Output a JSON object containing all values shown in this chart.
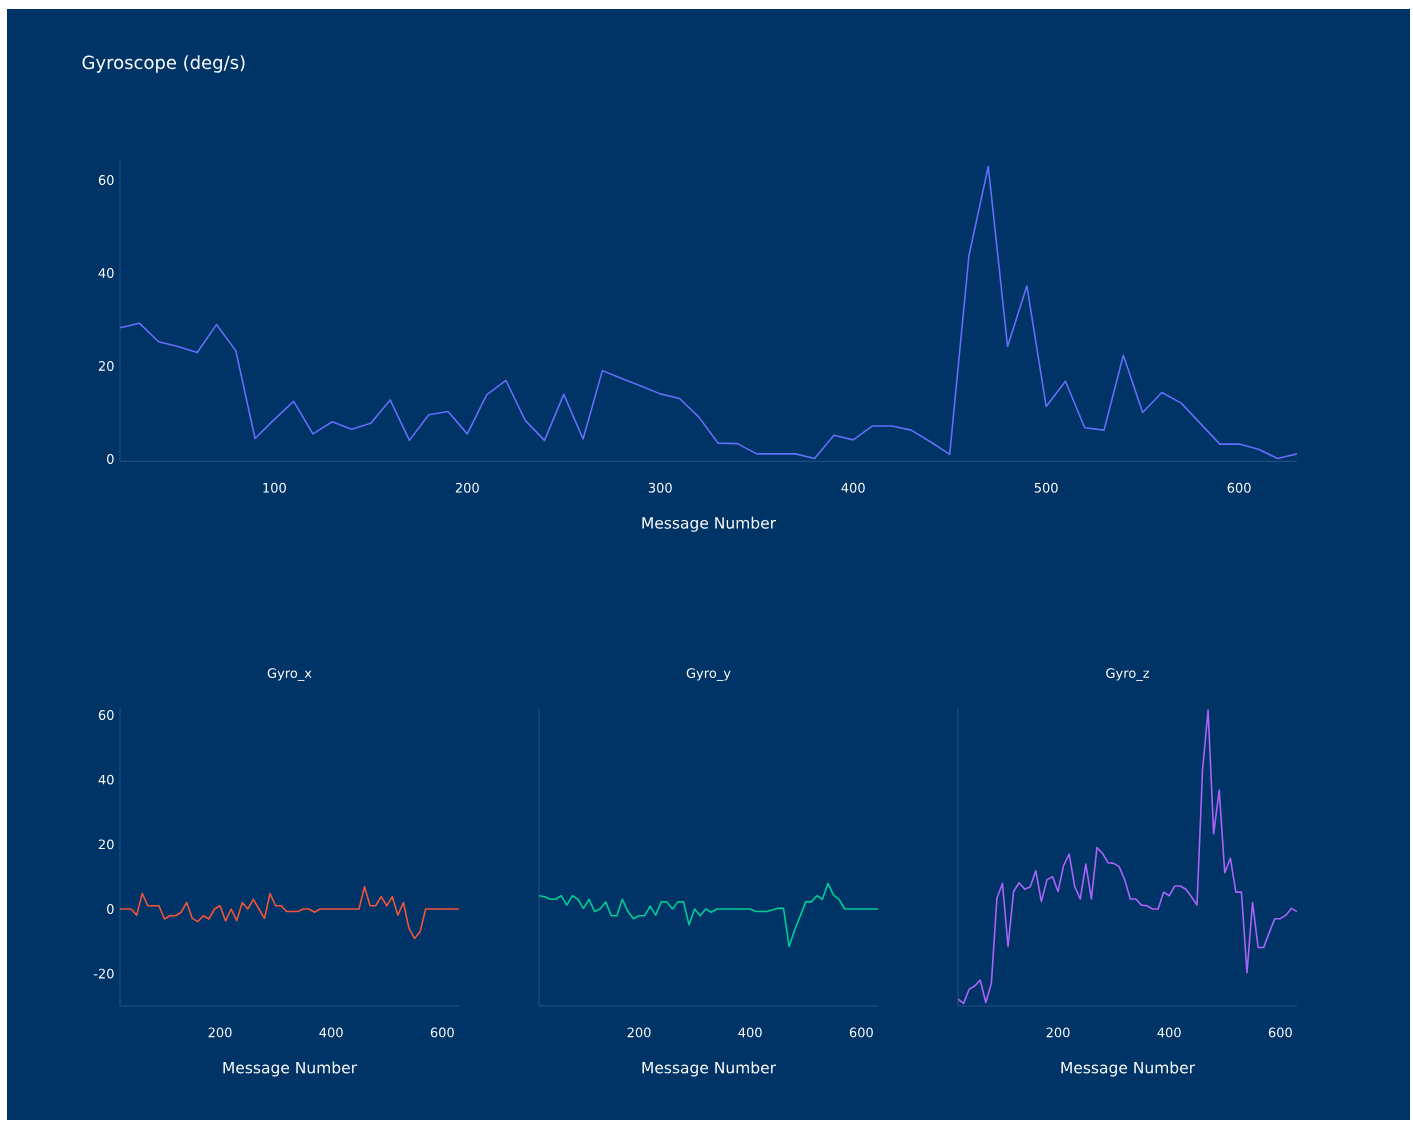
{
  "chart_data": [
    {
      "type": "line",
      "title": "Gyroscope (deg/s)",
      "xlabel": "Message Number",
      "xlim": [
        20,
        630
      ],
      "ylim": [
        -0.5,
        64
      ],
      "xticks": [
        100,
        200,
        300,
        400,
        500,
        600
      ],
      "yticks": [
        0,
        20,
        40,
        60
      ],
      "x": [
        20,
        30,
        40,
        50,
        60,
        70,
        80,
        90,
        100,
        110,
        120,
        130,
        140,
        150,
        160,
        170,
        180,
        190,
        200,
        210,
        220,
        230,
        240,
        250,
        260,
        270,
        280,
        290,
        300,
        310,
        320,
        330,
        340,
        350,
        360,
        370,
        380,
        390,
        400,
        410,
        420,
        430,
        440,
        450,
        460,
        470,
        480,
        490,
        500,
        510,
        520,
        530,
        540,
        550,
        560,
        570,
        580,
        590,
        600,
        610,
        620,
        630
      ],
      "series": [
        {
          "color": "#636efa",
          "values": [
            28.2,
            29.2,
            25.2,
            24.2,
            22.9,
            28.9,
            23.3,
            4.4,
            8.5,
            12.4,
            5.4,
            8.0,
            6.4,
            7.7,
            12.7,
            4.0,
            9.5,
            10.2,
            5.4,
            13.8,
            16.9,
            8.3,
            4.0,
            13.9,
            4.3,
            19.0,
            17.3,
            15.7,
            14.0,
            13.0,
            9.0,
            3.4,
            3.3,
            1.1,
            1.1,
            1.1,
            0.1,
            5.1,
            4.1,
            7.1,
            7.1,
            6.2,
            3.7,
            1.0,
            43.8,
            62.9,
            24.2,
            37.2,
            11.3,
            16.7,
            6.7,
            6.2,
            22.3,
            10.0,
            14.3,
            12.0,
            7.6,
            3.2,
            3.2,
            2.1,
            0.1,
            1.1
          ]
        }
      ]
    },
    {
      "type": "line",
      "title": "Gyro_x",
      "xlabel": "Message Number",
      "xlim": [
        20,
        630
      ],
      "ylim": [
        -30,
        62
      ],
      "xticks": [
        200,
        400,
        600
      ],
      "yticks": [
        -20,
        0,
        20,
        40,
        60
      ],
      "x": [
        20,
        30,
        40,
        50,
        60,
        70,
        80,
        90,
        100,
        110,
        120,
        130,
        140,
        150,
        160,
        170,
        180,
        190,
        200,
        210,
        220,
        230,
        240,
        250,
        260,
        270,
        280,
        290,
        300,
        310,
        320,
        330,
        340,
        350,
        360,
        370,
        380,
        390,
        400,
        410,
        420,
        430,
        440,
        450,
        460,
        470,
        480,
        490,
        500,
        510,
        520,
        530,
        540,
        550,
        560,
        570,
        580,
        590,
        600,
        610,
        620,
        630
      ],
      "series": [
        {
          "color": "#ef553b",
          "values": [
            0,
            0,
            0,
            -1.9,
            4.8,
            1.0,
            1.0,
            1.0,
            -3.1,
            -2.1,
            -2.1,
            -1.0,
            2.0,
            -2.9,
            -3.9,
            -2.1,
            -3.1,
            0,
            1.0,
            -3.7,
            0,
            -3.6,
            2.0,
            0,
            3.0,
            0,
            -2.9,
            4.8,
            1.0,
            1.0,
            -0.8,
            -0.8,
            -0.8,
            0,
            0,
            -1.0,
            0,
            0,
            0,
            0,
            0,
            0,
            0,
            0,
            6.9,
            1.0,
            1.0,
            3.8,
            1.0,
            3.8,
            -1.9,
            2.0,
            -6.0,
            -9.1,
            -7.0,
            0,
            0,
            0,
            0,
            0,
            0,
            0
          ]
        }
      ]
    },
    {
      "type": "line",
      "title": "Gyro_y",
      "xlabel": "Message Number",
      "xlim": [
        20,
        630
      ],
      "ylim": [
        -30,
        62
      ],
      "xticks": [
        200,
        400,
        600
      ],
      "tick_labels": "x",
      "x": [
        20,
        30,
        40,
        50,
        60,
        70,
        80,
        90,
        100,
        110,
        120,
        130,
        140,
        150,
        160,
        170,
        180,
        190,
        200,
        210,
        220,
        230,
        240,
        250,
        260,
        270,
        280,
        290,
        300,
        310,
        320,
        330,
        340,
        350,
        360,
        370,
        380,
        390,
        400,
        410,
        420,
        430,
        440,
        450,
        460,
        470,
        480,
        490,
        500,
        510,
        520,
        530,
        540,
        550,
        560,
        570,
        580,
        590,
        600,
        610,
        620,
        630
      ],
      "series": [
        {
          "color": "#00cc96",
          "values": [
            4.1,
            3.8,
            3.0,
            3.0,
            4.1,
            1.2,
            4.1,
            3.0,
            0.2,
            3.0,
            -0.8,
            0,
            2.2,
            -2.1,
            -2.1,
            3.0,
            -0.8,
            -3.0,
            -2.1,
            -2.1,
            0.9,
            -1.9,
            2.2,
            2.2,
            0,
            2.2,
            2.2,
            -4.9,
            0,
            -2.1,
            0,
            -1.0,
            0,
            0,
            0,
            0,
            0,
            0,
            0,
            -0.8,
            -0.8,
            -0.8,
            -0.3,
            0.2,
            0.2,
            -11.6,
            -6.5,
            -2.2,
            2.2,
            2.2,
            4.1,
            3.0,
            7.9,
            4.3,
            3.0,
            0,
            0,
            0,
            0,
            0,
            0,
            0
          ]
        }
      ]
    },
    {
      "type": "line",
      "title": "Gyro_z",
      "xlabel": "Message Number",
      "xlim": [
        20,
        630
      ],
      "ylim": [
        -30,
        62
      ],
      "xticks": [
        200,
        400,
        600
      ],
      "tick_labels": "x",
      "x": [
        20,
        30,
        40,
        50,
        60,
        70,
        80,
        90,
        100,
        110,
        120,
        130,
        140,
        150,
        160,
        170,
        180,
        190,
        200,
        210,
        220,
        230,
        240,
        250,
        260,
        270,
        280,
        290,
        300,
        310,
        320,
        330,
        340,
        350,
        360,
        370,
        380,
        390,
        400,
        410,
        420,
        430,
        440,
        450,
        460,
        470,
        480,
        490,
        500,
        510,
        520,
        530,
        540,
        550,
        560,
        570,
        580,
        590,
        600,
        610,
        620,
        630
      ],
      "series": [
        {
          "color": "#ab63fa",
          "values": [
            -27.9,
            -29.2,
            -24.8,
            -23.8,
            -22.0,
            -28.9,
            -23.0,
            3.3,
            7.9,
            -11.6,
            5.4,
            8.1,
            6.1,
            6.9,
            11.8,
            2.3,
            9.0,
            10.0,
            5.4,
            13.4,
            17.0,
            6.9,
            3.1,
            13.9,
            3.1,
            19.0,
            17.2,
            14.3,
            14.1,
            13.1,
            9.0,
            3.1,
            3.1,
            1.2,
            1.0,
            0,
            0,
            5.2,
            4.1,
            7.1,
            7.1,
            6.1,
            3.8,
            1.2,
            43.0,
            61.5,
            23.2,
            36.8,
            11.2,
            15.7,
            5.2,
            5.2,
            -19.7,
            2.0,
            -11.9,
            -11.9,
            -7.3,
            -3.0,
            -3.0,
            -1.9,
            0.2,
            -0.8
          ]
        }
      ]
    }
  ]
}
